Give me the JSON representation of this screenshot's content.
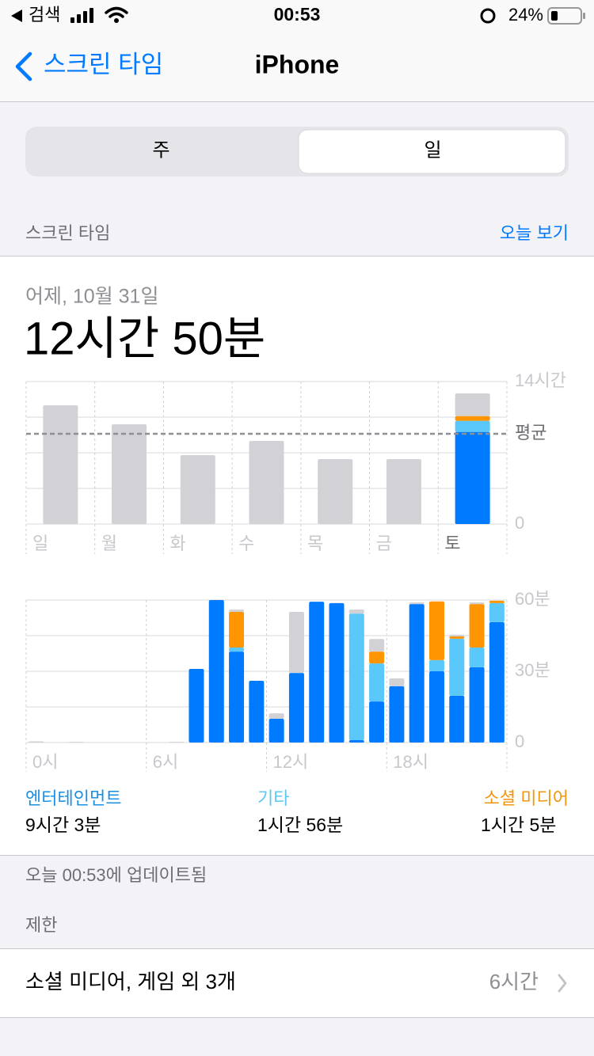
{
  "status_bar": {
    "back": "검색",
    "time": "00:53",
    "battery": "24%"
  },
  "nav": {
    "back": "스크린 타임",
    "title": "iPhone"
  },
  "segment": {
    "options": [
      "주",
      "일"
    ],
    "selected": 1
  },
  "section": {
    "title": "스크린 타임",
    "link": "오늘 보기"
  },
  "summary": {
    "date": "어제, 10월 31일",
    "total": "12시간 50분"
  },
  "chart_data": [
    {
      "type": "bar",
      "stacked": true,
      "grid": true,
      "categories": [
        "일",
        "월",
        "화",
        "수",
        "목",
        "금",
        "토"
      ],
      "selected": 6,
      "ylim": [
        0,
        14
      ],
      "yticks": [
        0,
        {
          "value": 14,
          "label": "14시간"
        }
      ],
      "minor_ticks": [
        3.5,
        7,
        10.5
      ],
      "average": {
        "value": 8.87,
        "label": "평균"
      },
      "series": [
        {
          "color": "#007aff",
          "values": [
            null,
            null,
            null,
            null,
            null,
            null,
            9.05
          ]
        },
        {
          "color": "#5ac8fa",
          "values": [
            null,
            null,
            null,
            null,
            null,
            null,
            1.09
          ]
        },
        {
          "color": "#ff9500",
          "values": [
            null,
            null,
            null,
            null,
            null,
            null,
            0.47
          ]
        },
        {
          "color": "#d1d1d6",
          "values": [
            11.67,
            9.8,
            6.77,
            8.17,
            6.38,
            6.38,
            2.22
          ]
        }
      ]
    },
    {
      "type": "bar",
      "stacked": true,
      "grid": true,
      "categories": [
        "0시",
        null,
        null,
        null,
        null,
        null,
        "6시",
        null,
        null,
        null,
        null,
        null,
        "12시",
        null,
        null,
        null,
        null,
        null,
        "18시",
        null,
        null,
        null,
        null,
        null
      ],
      "ylim": [
        0,
        60
      ],
      "yticks": [
        0,
        {
          "value": 30,
          "label": "30분"
        },
        {
          "value": 60,
          "label": "60분"
        }
      ],
      "minor_ticks": [
        15,
        45
      ],
      "series": [
        {
          "name": "엔터테인먼트",
          "total": "9시간 3분",
          "color": "#007aff",
          "text_color": "#1a8fe3",
          "values": [
            null,
            null,
            null,
            null,
            null,
            null,
            null,
            null,
            31,
            60,
            38.3,
            26,
            10,
            29.3,
            59.3,
            58.7,
            1,
            17.3,
            23.7,
            58.3,
            30,
            19.7,
            31.7,
            50.7
          ]
        },
        {
          "name": "기타",
          "total": "1시간 56분",
          "color": "#5ac8fa",
          "text_color": "#5ac8fa",
          "values": [
            null,
            null,
            null,
            null,
            null,
            null,
            null,
            null,
            null,
            null,
            1.7,
            null,
            null,
            null,
            null,
            null,
            53.3,
            16,
            null,
            null,
            4.7,
            24,
            8.3,
            8
          ]
        },
        {
          "name": "소셜 미디어",
          "total": "1시간 5분",
          "color": "#ff9500",
          "text_color": "#f2960f",
          "values": [
            null,
            null,
            null,
            null,
            null,
            null,
            null,
            null,
            null,
            null,
            15,
            null,
            null,
            null,
            null,
            null,
            null,
            5,
            null,
            null,
            24.7,
            1,
            18.3,
            1
          ]
        },
        {
          "color": "#d1d1d6",
          "values": [
            0.5,
            null,
            0.3,
            null,
            null,
            null,
            null,
            0.3,
            null,
            null,
            1,
            null,
            2.3,
            25.7,
            null,
            null,
            1.7,
            5.3,
            3.3,
            0.7,
            null,
            0.7,
            0.7,
            null
          ]
        }
      ]
    }
  ],
  "updated": "오늘 00:53에 업데이트됨",
  "limits": {
    "header": "제한",
    "item": "소셜 미디어, 게임 외 3개",
    "value": "6시간"
  }
}
